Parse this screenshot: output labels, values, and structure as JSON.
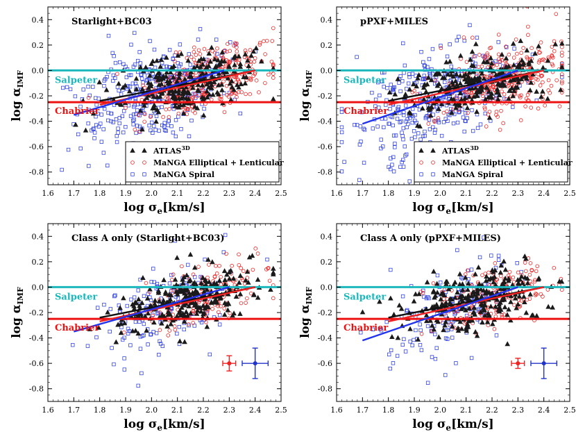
{
  "chart_data": [
    {
      "type": "scatter",
      "title": "Starlight+BC03",
      "xlabel": "log σe[km/s]",
      "ylabel": "log αIMF",
      "xlim": [
        1.6,
        2.5
      ],
      "ylim": [
        -0.9,
        0.5
      ],
      "xticks": [
        "1.6",
        "1.7",
        "1.8",
        "1.9",
        "2.0",
        "2.1",
        "2.2",
        "2.3",
        "2.4",
        "2.5"
      ],
      "yticks": [
        "-0.8",
        "-0.6",
        "-0.4",
        "-0.2",
        "0.0",
        "0.2",
        "0.4"
      ],
      "reference_lines": [
        {
          "label": "Salpeter",
          "y": 0.0,
          "color": "#1ab8bd"
        },
        {
          "label": "Chabrier",
          "y": -0.25,
          "color": "#ee1111"
        }
      ],
      "legend": {
        "position": "lower-right",
        "entries": [
          {
            "label": "ATLAS",
            "superscript": "3D",
            "marker": "triangle",
            "color": "#111111"
          },
          {
            "label": "MaNGA Elliptical + Lenticular",
            "marker": "circle",
            "color": "#ee2222"
          },
          {
            "label": "MaNGA Spiral",
            "marker": "square",
            "color": "#3344dd"
          }
        ]
      },
      "series": [
        {
          "name": "ATLAS3D",
          "n": 260,
          "x_center": 2.14,
          "x_spread": 0.14,
          "slope": 0.45,
          "intercept_at_2_1": -0.12,
          "scatter": 0.11
        },
        {
          "name": "MaNGA Elliptical + Lenticular",
          "n": 330,
          "x_center": 2.2,
          "x_spread": 0.13,
          "slope": 0.55,
          "intercept_at_2_1": -0.12,
          "scatter": 0.12
        },
        {
          "name": "MaNGA Spiral",
          "n": 330,
          "x_center": 2.0,
          "x_spread": 0.15,
          "slope": 0.6,
          "intercept_at_2_1": -0.12,
          "scatter": 0.2
        }
      ],
      "fit_lines": [
        {
          "name": "ATLAS3D fit",
          "x": [
            1.8,
            2.4
          ],
          "y": [
            -0.24,
            0.0
          ],
          "color": "#111111"
        },
        {
          "name": "MaNGA E+S0 fit",
          "x": [
            1.8,
            2.4
          ],
          "y": [
            -0.27,
            0.0
          ],
          "color": "#ee2222"
        },
        {
          "name": "MaNGA Spiral fit",
          "x": [
            1.7,
            2.28
          ],
          "y": [
            -0.35,
            0.0
          ],
          "color": "#2233ee"
        }
      ],
      "error_bars": []
    },
    {
      "type": "scatter",
      "title": "pPXF+MILES",
      "xlabel": "log σe[km/s]",
      "ylabel": "log αIMF",
      "xlim": [
        1.6,
        2.5
      ],
      "ylim": [
        -0.9,
        0.5
      ],
      "xticks": [
        "1.6",
        "1.7",
        "1.8",
        "1.9",
        "2.0",
        "2.1",
        "2.2",
        "2.3",
        "2.4",
        "2.5"
      ],
      "yticks": [
        "-0.8",
        "-0.6",
        "-0.4",
        "-0.2",
        "0.0",
        "0.2",
        "0.4"
      ],
      "reference_lines": [
        {
          "label": "Salpeter",
          "y": 0.0,
          "color": "#1ab8bd"
        },
        {
          "label": "Chabrier",
          "y": -0.25,
          "color": "#ee1111"
        }
      ],
      "legend": {
        "position": "lower-right",
        "entries": [
          {
            "label": "ATLAS",
            "superscript": "3D",
            "marker": "triangle",
            "color": "#111111"
          },
          {
            "label": "MaNGA Elliptical + Lenticular",
            "marker": "circle",
            "color": "#ee2222"
          },
          {
            "label": "MaNGA Spiral",
            "marker": "square",
            "color": "#3344dd"
          }
        ]
      },
      "series": [
        {
          "name": "ATLAS3D",
          "n": 260,
          "x_center": 2.14,
          "x_spread": 0.14,
          "slope": 0.45,
          "intercept_at_2_1": -0.12,
          "scatter": 0.11
        },
        {
          "name": "MaNGA Elliptical + Lenticular",
          "n": 330,
          "x_center": 2.25,
          "x_spread": 0.13,
          "slope": 0.6,
          "intercept_at_2_1": -0.13,
          "scatter": 0.14
        },
        {
          "name": "MaNGA Spiral",
          "n": 330,
          "x_center": 1.98,
          "x_spread": 0.15,
          "slope": 0.7,
          "intercept_at_2_1": -0.14,
          "scatter": 0.22
        }
      ],
      "fit_lines": [
        {
          "name": "ATLAS3D fit",
          "x": [
            1.8,
            2.4
          ],
          "y": [
            -0.24,
            0.0
          ],
          "color": "#111111"
        },
        {
          "name": "MaNGA E+S0 fit",
          "x": [
            1.8,
            2.4
          ],
          "y": [
            -0.27,
            0.0
          ],
          "color": "#ee2222"
        },
        {
          "name": "MaNGA Spiral fit",
          "x": [
            1.7,
            2.3
          ],
          "y": [
            -0.42,
            0.0
          ],
          "color": "#2233ee"
        }
      ],
      "error_bars": []
    },
    {
      "type": "scatter",
      "title": "Class A only (Starlight+BC03)",
      "xlabel": "log σe[km/s]",
      "ylabel": "log αIMF",
      "xlim": [
        1.6,
        2.5
      ],
      "ylim": [
        -0.9,
        0.5
      ],
      "xticks": [
        "1.6",
        "1.7",
        "1.8",
        "1.9",
        "2.0",
        "2.1",
        "2.2",
        "2.3",
        "2.4",
        "2.5"
      ],
      "yticks": [
        "-0.8",
        "-0.6",
        "-0.4",
        "-0.2",
        "0.0",
        "0.2",
        "0.4"
      ],
      "reference_lines": [
        {
          "label": "Salpeter",
          "y": 0.0,
          "color": "#1ab8bd"
        },
        {
          "label": "Chabrier",
          "y": -0.25,
          "color": "#ee1111"
        }
      ],
      "legend": null,
      "series": [
        {
          "name": "ATLAS3D",
          "n": 260,
          "x_center": 2.14,
          "x_spread": 0.14,
          "slope": 0.45,
          "intercept_at_2_1": -0.12,
          "scatter": 0.11
        },
        {
          "name": "MaNGA Elliptical + Lenticular",
          "n": 170,
          "x_center": 2.2,
          "x_spread": 0.12,
          "slope": 0.55,
          "intercept_at_2_1": -0.12,
          "scatter": 0.12
        },
        {
          "name": "MaNGA Spiral",
          "n": 150,
          "x_center": 2.05,
          "x_spread": 0.13,
          "slope": 0.6,
          "intercept_at_2_1": -0.12,
          "scatter": 0.17
        }
      ],
      "fit_lines": [
        {
          "name": "ATLAS3D fit",
          "x": [
            1.8,
            2.4
          ],
          "y": [
            -0.24,
            0.0
          ],
          "color": "#111111"
        },
        {
          "name": "MaNGA E+S0 fit",
          "x": [
            1.8,
            2.4
          ],
          "y": [
            -0.27,
            0.0
          ],
          "color": "#ee2222"
        },
        {
          "name": "MaNGA Spiral fit",
          "x": [
            1.7,
            2.3
          ],
          "y": [
            -0.35,
            0.0
          ],
          "color": "#2233ee"
        }
      ],
      "error_bars": [
        {
          "name": "MaNGA E+S0 typical error",
          "x": 2.3,
          "y": -0.6,
          "xerr": 0.025,
          "yerr": 0.06,
          "color": "#ee2222"
        },
        {
          "name": "MaNGA Spiral typical error",
          "x": 2.4,
          "y": -0.6,
          "xerr": 0.05,
          "yerr": 0.12,
          "color": "#2233cc"
        }
      ]
    },
    {
      "type": "scatter",
      "title": "Class A only (pPXF+MILES)",
      "xlabel": "log σe[km/s]",
      "ylabel": "log αIMF",
      "xlim": [
        1.6,
        2.5
      ],
      "ylim": [
        -0.9,
        0.5
      ],
      "xticks": [
        "1.6",
        "1.7",
        "1.8",
        "1.9",
        "2.0",
        "2.1",
        "2.2",
        "2.3",
        "2.4",
        "2.5"
      ],
      "yticks": [
        "-0.8",
        "-0.6",
        "-0.4",
        "-0.2",
        "0.0",
        "0.2",
        "0.4"
      ],
      "reference_lines": [
        {
          "label": "Salpeter",
          "y": 0.0,
          "color": "#1ab8bd"
        },
        {
          "label": "Chabrier",
          "y": -0.25,
          "color": "#ee1111"
        }
      ],
      "legend": null,
      "series": [
        {
          "name": "ATLAS3D",
          "n": 260,
          "x_center": 2.14,
          "x_spread": 0.14,
          "slope": 0.45,
          "intercept_at_2_1": -0.12,
          "scatter": 0.11
        },
        {
          "name": "MaNGA Elliptical + Lenticular",
          "n": 170,
          "x_center": 2.22,
          "x_spread": 0.12,
          "slope": 0.6,
          "intercept_at_2_1": -0.13,
          "scatter": 0.12
        },
        {
          "name": "MaNGA Spiral",
          "n": 150,
          "x_center": 2.03,
          "x_spread": 0.13,
          "slope": 0.7,
          "intercept_at_2_1": -0.14,
          "scatter": 0.19
        }
      ],
      "fit_lines": [
        {
          "name": "ATLAS3D fit",
          "x": [
            1.8,
            2.4
          ],
          "y": [
            -0.24,
            0.0
          ],
          "color": "#111111"
        },
        {
          "name": "MaNGA E+S0 fit",
          "x": [
            1.8,
            2.4
          ],
          "y": [
            -0.27,
            0.0
          ],
          "color": "#ee2222"
        },
        {
          "name": "MaNGA Spiral fit",
          "x": [
            1.7,
            2.3
          ],
          "y": [
            -0.42,
            0.0
          ],
          "color": "#2233ee"
        }
      ],
      "error_bars": [
        {
          "name": "MaNGA E+S0 typical error",
          "x": 2.3,
          "y": -0.6,
          "xerr": 0.025,
          "yerr": 0.04,
          "color": "#ee2222"
        },
        {
          "name": "MaNGA Spiral typical error",
          "x": 2.4,
          "y": -0.6,
          "xerr": 0.05,
          "yerr": 0.12,
          "color": "#2233cc"
        }
      ]
    }
  ]
}
